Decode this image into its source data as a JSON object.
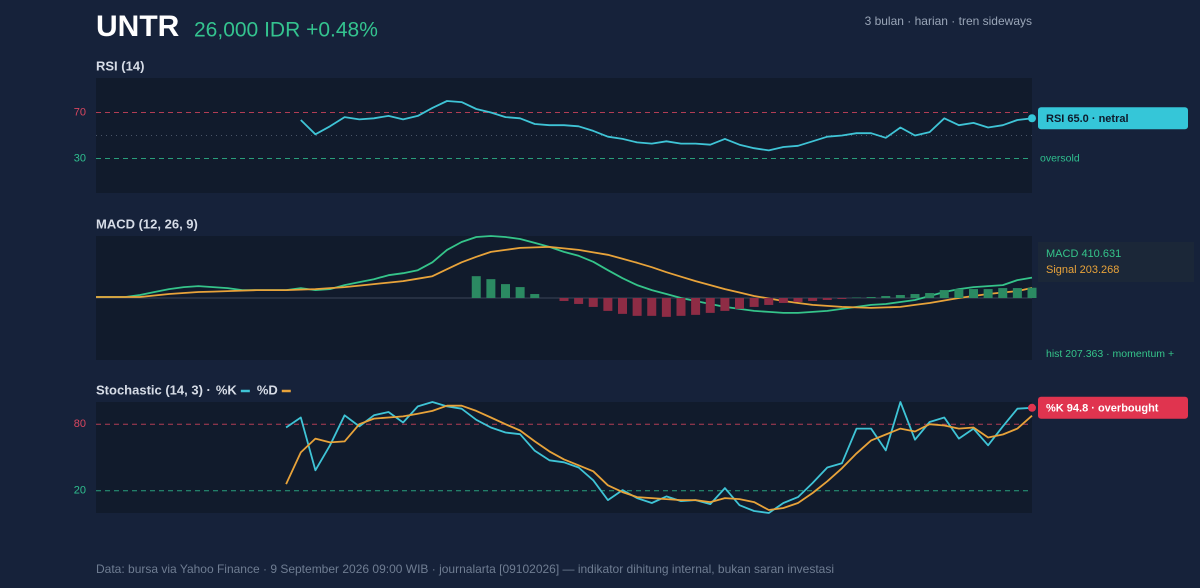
{
  "header": {
    "ticker": "UNTR",
    "quote": "26,000 IDR +0.48%",
    "meta": "3 bulan · harian · tren sideways"
  },
  "chart_data": [
    {
      "type": "line",
      "title": "RSI (14)",
      "ylim": [
        0,
        100
      ],
      "yticks": [
        70,
        30
      ],
      "ytick_colors": [
        "#d9465f",
        "#2fbf8f"
      ],
      "midline": 50,
      "annotation": "oversold",
      "badge": "RSI 65.0 · netral",
      "badge_color": "#35c6d8",
      "series": [
        {
          "name": "RSI",
          "color": "#3fc4d6",
          "values": [
            null,
            null,
            null,
            null,
            null,
            null,
            null,
            null,
            null,
            null,
            null,
            null,
            null,
            null,
            63.5,
            51,
            58,
            66,
            64,
            65,
            67,
            64,
            67,
            74,
            80,
            79,
            73,
            70,
            66,
            65,
            60,
            59,
            59,
            58,
            54,
            49,
            47,
            44,
            43,
            45,
            43,
            43,
            42,
            47,
            42,
            39,
            37,
            40,
            41,
            45,
            49,
            50,
            52,
            52,
            48,
            57,
            50,
            53,
            65,
            59,
            61,
            57,
            59,
            63.5,
            65
          ]
        }
      ]
    },
    {
      "type": "line",
      "title": "MACD (12, 26, 9)",
      "ylim": [
        -1250,
        1250
      ],
      "zero_line": true,
      "annotation": "hist 207.363 · momentum +",
      "series": [
        {
          "name": "MACD",
          "readout": "MACD 410.631",
          "color": "#35c48a",
          "values": [
            20,
            20,
            20,
            60,
            120,
            180,
            220,
            240,
            220,
            200,
            160,
            160,
            160,
            160,
            200,
            160,
            180,
            260,
            320,
            380,
            460,
            500,
            560,
            720,
            970,
            1130,
            1230,
            1250,
            1230,
            1190,
            1110,
            1030,
            930,
            850,
            730,
            560,
            400,
            260,
            160,
            80,
            0,
            -60,
            -120,
            -180,
            -220,
            -260,
            -280,
            -300,
            -300,
            -280,
            -260,
            -220,
            -180,
            -140,
            -120,
            -80,
            -40,
            40,
            120,
            180,
            220,
            240,
            260,
            360,
            410.631
          ]
        },
        {
          "name": "Signal",
          "readout": "Signal 203.268",
          "color": "#e8a33a",
          "values": [
            20,
            20,
            20,
            20,
            50,
            80,
            100,
            120,
            130,
            140,
            150,
            160,
            160,
            160,
            170,
            180,
            200,
            220,
            250,
            280,
            310,
            340,
            390,
            440,
            580,
            720,
            830,
            930,
            970,
            1010,
            1020,
            1030,
            1000,
            970,
            920,
            870,
            790,
            710,
            620,
            520,
            430,
            340,
            260,
            180,
            110,
            40,
            -10,
            -60,
            -100,
            -140,
            -160,
            -180,
            -190,
            -200,
            -190,
            -180,
            -140,
            -100,
            -50,
            0,
            40,
            80,
            110,
            140,
            203.268
          ]
        },
        {
          "type": "bar",
          "positive_color": "#2b8a62",
          "negative_color": "#8e2c45",
          "values": [
            null,
            null,
            null,
            null,
            null,
            null,
            null,
            null,
            null,
            null,
            null,
            null,
            null,
            null,
            null,
            null,
            null,
            null,
            null,
            null,
            null,
            null,
            null,
            null,
            null,
            null,
            440,
            380,
            280,
            220,
            80,
            0,
            -60,
            -120,
            -180,
            -260,
            -320,
            -360,
            -360,
            -380,
            -360,
            -340,
            -300,
            -260,
            -220,
            -180,
            -140,
            -100,
            -80,
            -60,
            -40,
            -20,
            10,
            20,
            40,
            60,
            80,
            100,
            160,
            180,
            180,
            180,
            200,
            200,
            207.363
          ]
        }
      ]
    },
    {
      "type": "line",
      "title": "Stochastic (14, 3) ·",
      "ylim": [
        0,
        100
      ],
      "yticks": [
        80,
        20
      ],
      "ytick_colors": [
        "#d9465f",
        "#2fbf8f"
      ],
      "badge": "%K 94.8 · overbought",
      "badge_color": "#e0344f",
      "series": [
        {
          "name": "%K",
          "color": "#3fc4d6",
          "values": [
            null,
            null,
            null,
            null,
            null,
            null,
            null,
            null,
            null,
            null,
            null,
            null,
            null,
            77,
            86,
            38.5,
            61,
            88,
            78,
            88,
            91,
            81.5,
            96,
            100,
            96,
            94,
            84,
            77,
            72.5,
            71,
            56,
            47.5,
            45.7,
            41,
            29.5,
            11.6,
            20.6,
            13.4,
            9,
            15,
            10.7,
            11.6,
            8,
            22.4,
            7,
            1.8,
            0,
            9,
            14.3,
            27,
            41,
            44.8,
            76,
            76,
            56.4,
            100,
            66,
            82,
            86,
            67,
            76,
            61,
            78,
            94,
            94.8
          ]
        },
        {
          "name": "%D",
          "color": "#e8a33a",
          "values": [
            null,
            null,
            null,
            null,
            null,
            null,
            null,
            null,
            null,
            null,
            null,
            null,
            null,
            26,
            54.6,
            67,
            63.6,
            64.5,
            80,
            85,
            86,
            87,
            89.5,
            92,
            96.7,
            96.7,
            92,
            86,
            80,
            74.3,
            64.5,
            55.5,
            48.3,
            43,
            37.6,
            25,
            18.8,
            14.3,
            13.4,
            12.5,
            11.6,
            11.6,
            9.8,
            13.4,
            12.5,
            9.8,
            2.7,
            4.5,
            9,
            18,
            28.6,
            40.3,
            53.7,
            65.4,
            70.7,
            76,
            73.4,
            80,
            78.8,
            76,
            77,
            68,
            70.7,
            76,
            87.7
          ]
        }
      ]
    }
  ],
  "footer": "Data: bursa via Yahoo Finance · 9 September 2026 09:00 WIB · journalarta [09102026] — indikator dihitung internal, bukan saran investasi"
}
